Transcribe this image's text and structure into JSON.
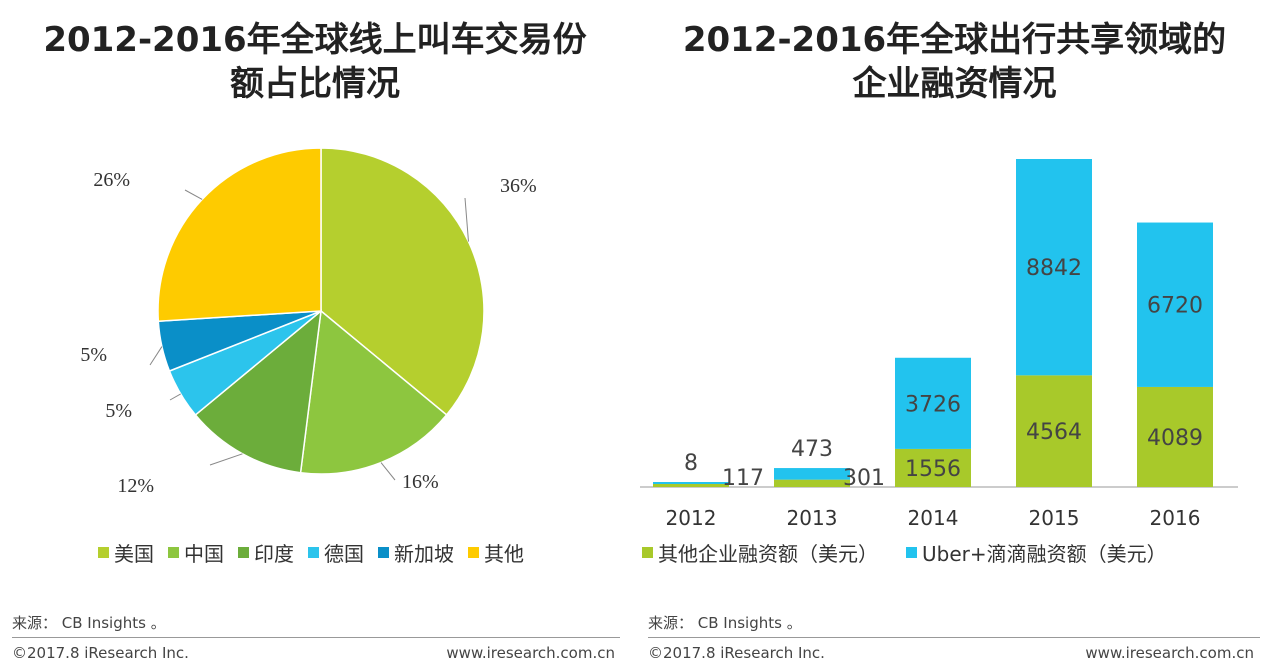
{
  "left": {
    "title_line1": "2012-2016年全球线上叫车交易份",
    "title_line2": "额占比情况",
    "source": "来源： CB Insights 。",
    "copyright": "©2017.8 iResearch Inc.",
    "website": "www.iresearch.com.cn"
  },
  "right": {
    "title_line1": "2012-2016年全球出行共享领域的",
    "title_line2": "企业融资情况",
    "source": "来源： CB Insights 。",
    "copyright": "©2017.8 iResearch Inc.",
    "website": "www.iresearch.com.cn"
  },
  "chart_data": [
    {
      "type": "pie",
      "title": "2012-2016年全球线上叫车交易份额占比情况",
      "slices": [
        {
          "label": "美国",
          "value": 36,
          "display": "36%",
          "color": "#b5cf2e"
        },
        {
          "label": "中国",
          "value": 16,
          "display": "16%",
          "color": "#8dc63f"
        },
        {
          "label": "印度",
          "value": 12,
          "display": "12%",
          "color": "#6cad3b"
        },
        {
          "label": "德国",
          "value": 5,
          "display": "5%",
          "color": "#2cc4ec"
        },
        {
          "label": "新加坡",
          "value": 5,
          "display": "5%",
          "color": "#0a8fc8"
        },
        {
          "label": "其他",
          "value": 26,
          "display": "26%",
          "color": "#fecb00"
        }
      ],
      "legend_position": "bottom"
    },
    {
      "type": "bar",
      "stacked": true,
      "title": "2012-2016年全球出行共享领域的企业融资情况",
      "categories": [
        "2012",
        "2013",
        "2014",
        "2015",
        "2016"
      ],
      "series": [
        {
          "name": "其他企业融资额（美元）",
          "values": [
            117,
            301,
            1556,
            4564,
            4089
          ],
          "color": "#a8c92a"
        },
        {
          "name": "Uber+滴滴融资额（美元）",
          "values": [
            8,
            473,
            3726,
            8842,
            6720
          ],
          "color": "#22c3ee"
        }
      ],
      "legend_position": "bottom",
      "grid": false
    }
  ]
}
